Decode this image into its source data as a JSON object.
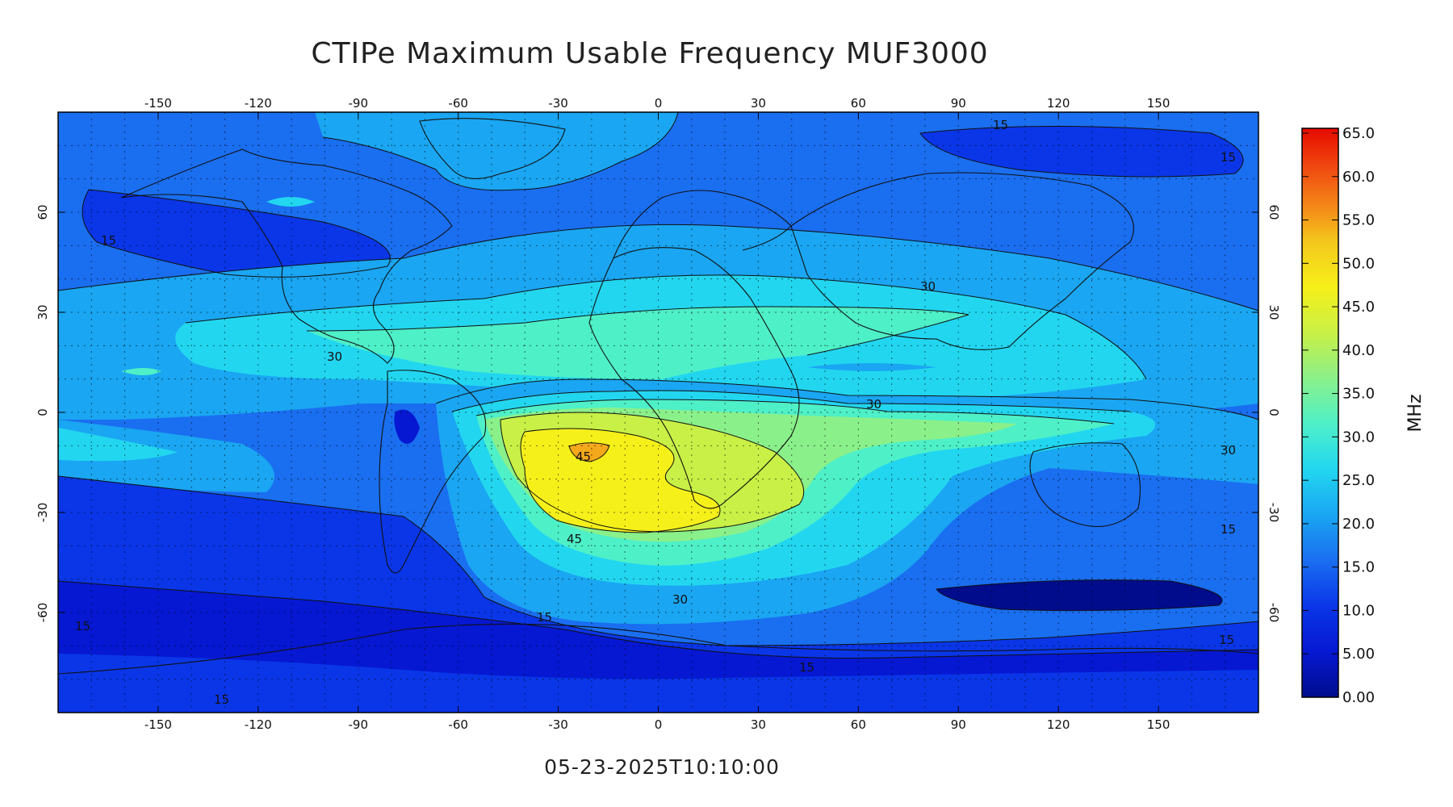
{
  "title": "CTIPe Maximum Usable Frequency MUF3000",
  "timestamp": "05-23-2025T10:10:00",
  "map": {
    "lon_ticks": [
      "-150",
      "-120",
      "-90",
      "-60",
      "-30",
      "0",
      "30",
      "60",
      "90",
      "120",
      "150"
    ],
    "lat_ticks": [
      "60",
      "30",
      "0",
      "-30",
      "-60"
    ],
    "contour_labels": [
      "15",
      "15",
      "15",
      "15",
      "15",
      "15",
      "15",
      "15",
      "15",
      "30",
      "30",
      "30",
      "30",
      "30",
      "45",
      "45"
    ]
  },
  "colorbar": {
    "unit": "MHz",
    "ticks": [
      "65.0",
      "60.0",
      "55.0",
      "50.0",
      "45.0",
      "40.0",
      "35.0",
      "30.0",
      "25.0",
      "20.0",
      "15.0",
      "10.0",
      "5.00",
      "0.00"
    ]
  },
  "colors": {
    "c0": "#000c8c",
    "c5": "#0618d2",
    "c10": "#0a36e8",
    "c15": "#1a6ef0",
    "c20": "#1aa6f2",
    "c25": "#22d6f0",
    "c30": "#4ef0c8",
    "c35": "#8af08a",
    "c40": "#c8f046",
    "c45": "#f6f01a",
    "c50": "#f4a81c",
    "c55": "#f46a12",
    "c60": "#f02a0a",
    "c65": "#d20000"
  }
}
